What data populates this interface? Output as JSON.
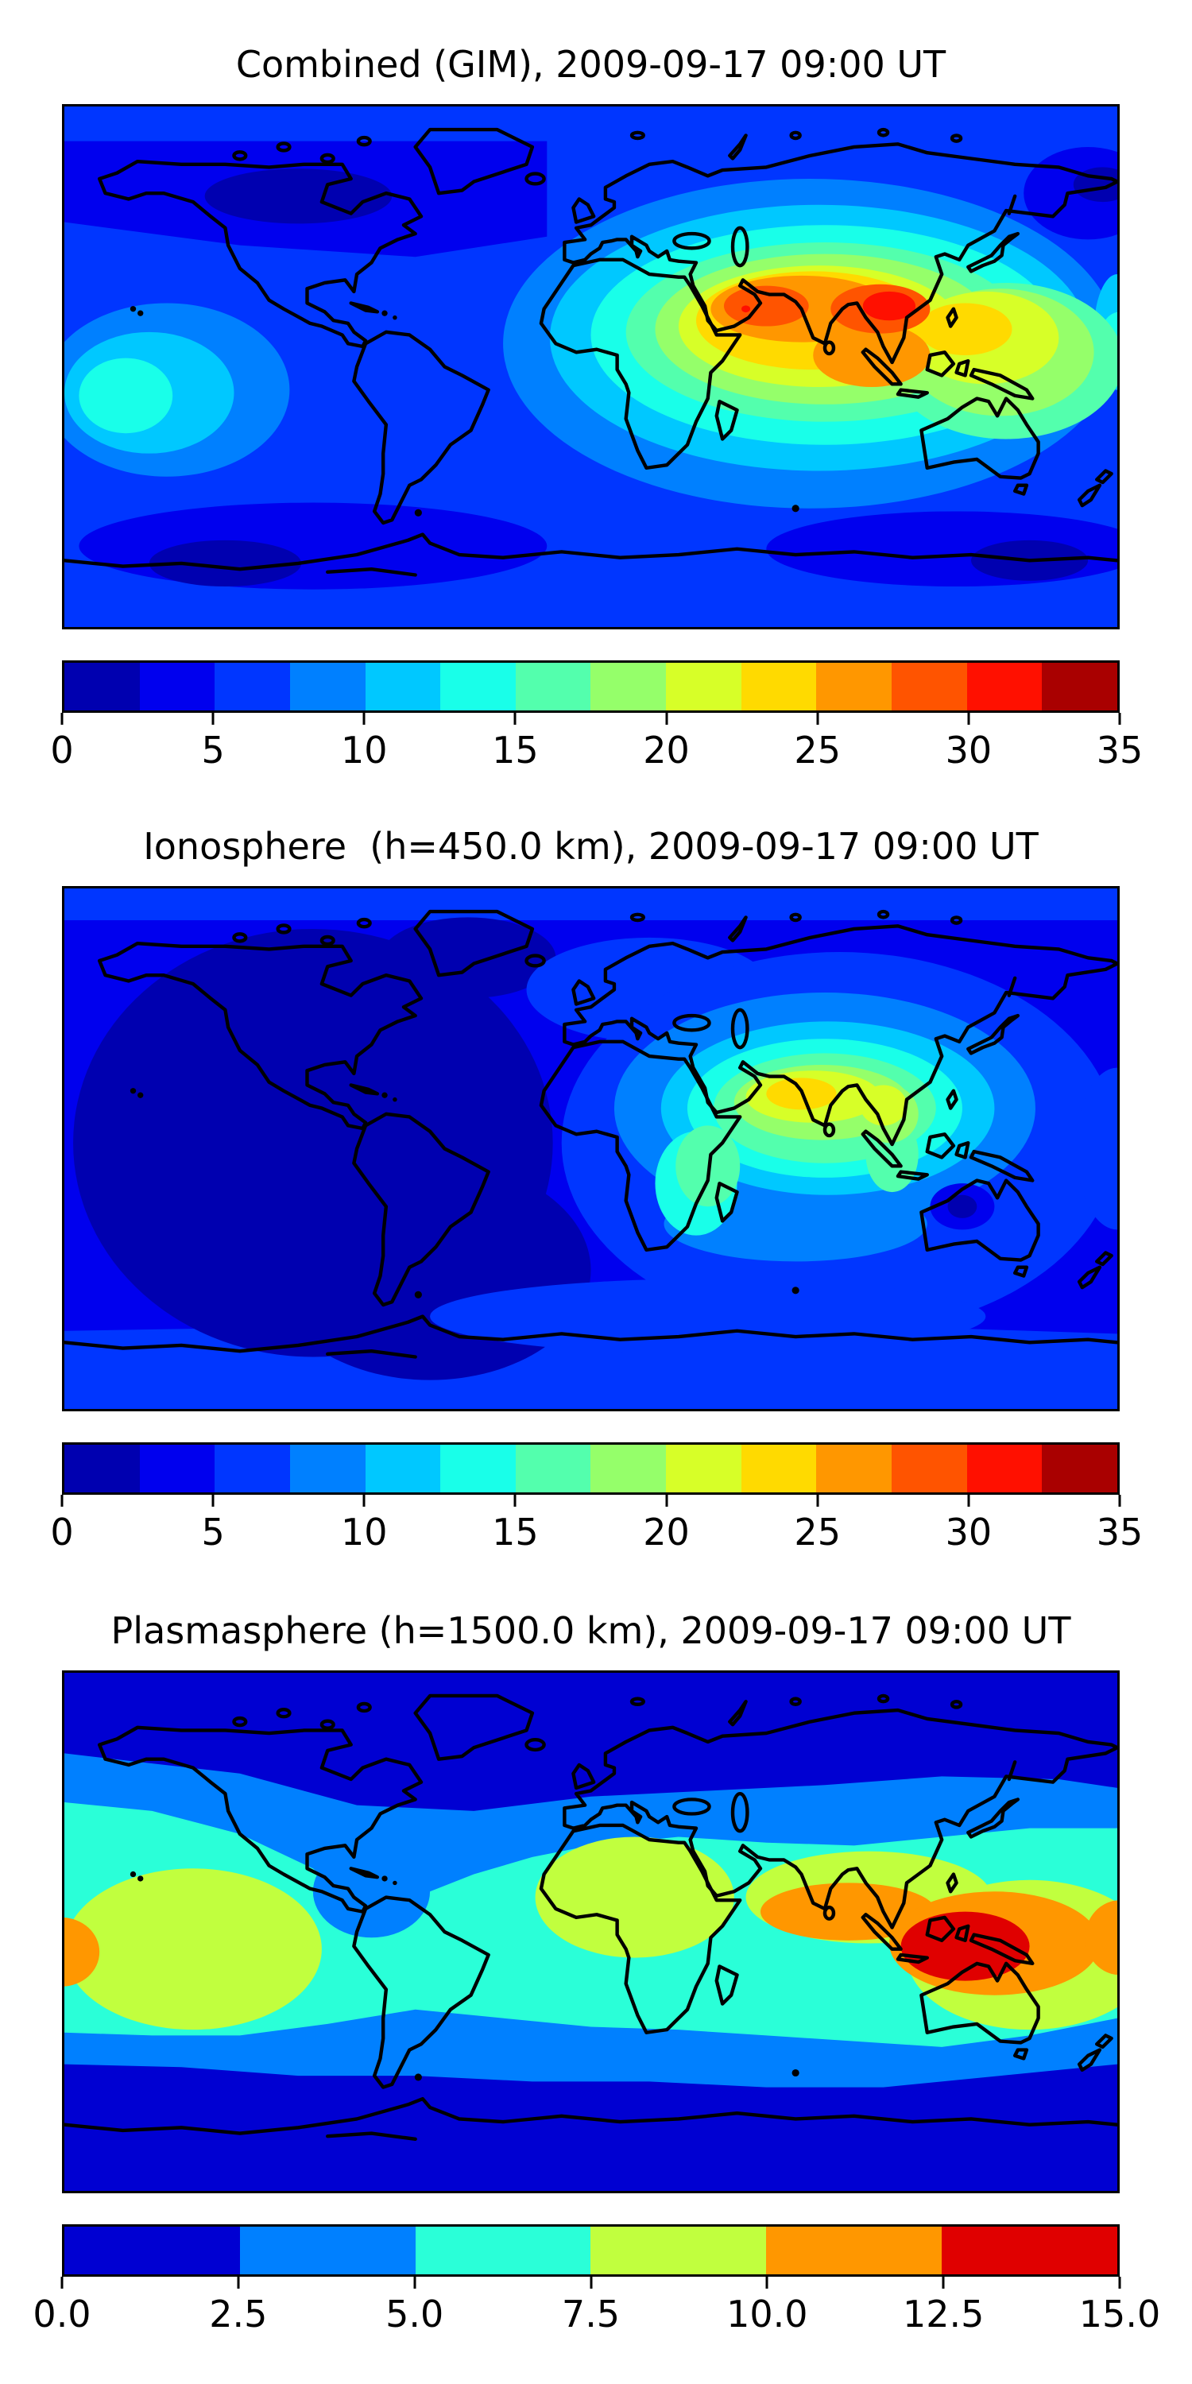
{
  "figure": {
    "background": "#ffffff",
    "panels": [
      {
        "id": "combined",
        "title": "Combined (GIM), 2009-09-17 09:00 UT",
        "colorbar": {
          "ticks": [
            "0",
            "5",
            "10",
            "15",
            "20",
            "25",
            "30",
            "35"
          ],
          "colors": [
            "#0000b0",
            "#0000ee",
            "#0036ff",
            "#0080ff",
            "#00c8ff",
            "#19ffe9",
            "#53ffad",
            "#95ff6a",
            "#d7ff28",
            "#ffda00",
            "#ff9700",
            "#ff5400",
            "#ff1000",
            "#a90000"
          ]
        }
      },
      {
        "id": "ionosphere",
        "title": "Ionosphere  (h=450.0 km), 2009-09-17 09:00 UT",
        "colorbar": {
          "ticks": [
            "0",
            "5",
            "10",
            "15",
            "20",
            "25",
            "30",
            "35"
          ],
          "colors": [
            "#0000b0",
            "#0000ee",
            "#0036ff",
            "#0080ff",
            "#00c8ff",
            "#19ffe9",
            "#53ffad",
            "#95ff6a",
            "#d7ff28",
            "#ffda00",
            "#ff9700",
            "#ff5400",
            "#ff1000",
            "#a90000"
          ]
        }
      },
      {
        "id": "plasmasphere",
        "title": "Plasmasphere (h=1500.0 km), 2009-09-17 09:00 UT",
        "colorbar": {
          "ticks": [
            "0.0",
            "2.5",
            "5.0",
            "7.5",
            "10.0",
            "12.5",
            "15.0"
          ],
          "colors": [
            "#0000d2",
            "#0080ff",
            "#2affd8",
            "#c1ff3e",
            "#ff9700",
            "#e00000"
          ]
        }
      }
    ]
  },
  "chart_data": [
    {
      "type": "heatmap",
      "subtype": "filled-contour-world-map",
      "title": "Combined (GIM), 2009-09-17 09:00 UT",
      "projection": "equirectangular, lon -180..180, lat -90..90",
      "value_range": [
        0,
        35
      ],
      "contour_interval": 2.5,
      "colormap": "jet (14 discrete bands)",
      "legend_position": "horizontal colorbar below map",
      "maxima": [
        {
          "lon": 102,
          "lat": 21,
          "approx_value": 33
        },
        {
          "lon": 57,
          "lat": 21,
          "approx_value": 31
        },
        {
          "lon": -155,
          "lat": -9,
          "approx_value": 14
        }
      ],
      "minima": [
        {
          "lon": -90,
          "lat": 60,
          "approx_value": 2
        },
        {
          "lon": -125,
          "lat": -68,
          "approx_value": 2
        }
      ],
      "regions": [
        {
          "t": "p",
          "c": "#0000ee",
          "pts": [
            [
              -180,
              78
            ],
            [
              -15,
              78
            ],
            [
              -15,
              45
            ],
            [
              -60,
              38
            ],
            [
              -120,
              42
            ],
            [
              -180,
              50
            ]
          ]
        },
        {
          "t": "e",
          "c": "#0000b0",
          "lon": -100,
          "lat": 59,
          "rx": 32,
          "ry": 9.5
        },
        {
          "t": "e",
          "c": "#0000ee",
          "lon": 170,
          "lat": 60,
          "rx": 22,
          "ry": 16
        },
        {
          "t": "e",
          "c": "#0000b0",
          "lon": 175,
          "lat": 63,
          "rx": 10,
          "ry": 6
        },
        {
          "t": "e",
          "c": "#0000ee",
          "lon": -95,
          "lat": -62,
          "rx": 80,
          "ry": 15
        },
        {
          "t": "e",
          "c": "#0000b0",
          "lon": -125,
          "lat": -68,
          "rx": 26,
          "ry": 8
        },
        {
          "t": "e",
          "c": "#0000ee",
          "lon": 125,
          "lat": -63,
          "rx": 65,
          "ry": 13
        },
        {
          "t": "e",
          "c": "#0000b0",
          "lon": 150,
          "lat": -67,
          "rx": 20,
          "ry": 7
        },
        {
          "t": "e",
          "c": "#0080ff",
          "lon": -145,
          "lat": -8,
          "rx": 42,
          "ry": 30
        },
        {
          "t": "e",
          "c": "#00c8ff",
          "lon": -151,
          "lat": -9,
          "rx": 29,
          "ry": 21
        },
        {
          "t": "e",
          "c": "#19ffe9",
          "lon": -159,
          "lat": -10,
          "rx": 16,
          "ry": 13
        },
        {
          "t": "e",
          "c": "#0080ff",
          "lon": 75,
          "lat": 8,
          "rx": 105,
          "ry": 57
        },
        {
          "t": "e",
          "c": "#00c8ff",
          "lon": 78,
          "lat": 10,
          "rx": 92,
          "ry": 46
        },
        {
          "t": "e",
          "c": "#00c8ff",
          "lon": 180,
          "lat": 12,
          "rx": 8,
          "ry": 20
        },
        {
          "t": "e",
          "c": "#19ffe9",
          "lon": 80,
          "lat": 11,
          "rx": 80,
          "ry": 38
        },
        {
          "t": "e",
          "c": "#19ffe9",
          "lon": 181,
          "lat": 10,
          "rx": 7,
          "ry": 9
        },
        {
          "t": "e",
          "c": "#53ffad",
          "lon": 80,
          "lat": 12,
          "rx": 68,
          "ry": 31
        },
        {
          "t": "e",
          "c": "#53ffad",
          "lon": 142,
          "lat": 2,
          "rx": 40,
          "ry": 27
        },
        {
          "t": "e",
          "c": "#95ff6a",
          "lon": 80,
          "lat": 13,
          "rx": 58,
          "ry": 26
        },
        {
          "t": "e",
          "c": "#95ff6a",
          "lon": 140,
          "lat": 5,
          "rx": 32,
          "ry": 22
        },
        {
          "t": "e",
          "c": "#d7ff28",
          "lon": 78,
          "lat": 14,
          "rx": 48,
          "ry": 21
        },
        {
          "t": "e",
          "c": "#d7ff28",
          "lon": 135,
          "lat": 10,
          "rx": 25,
          "ry": 16
        },
        {
          "t": "e",
          "c": "#ffda00",
          "lon": 76,
          "lat": 16,
          "rx": 40,
          "ry": 17
        },
        {
          "t": "e",
          "c": "#ffda00",
          "lon": 128,
          "lat": 13,
          "rx": 16,
          "ry": 9
        },
        {
          "t": "e",
          "c": "#ff9700",
          "lon": 72,
          "lat": 20,
          "rx": 31,
          "ry": 11.5
        },
        {
          "t": "e",
          "c": "#ff9700",
          "lon": 96,
          "lat": 4,
          "rx": 20,
          "ry": 11
        },
        {
          "t": "e",
          "c": "#ff5400",
          "lon": 60,
          "lat": 21,
          "rx": 14.5,
          "ry": 7
        },
        {
          "t": "e",
          "c": "#ff5400",
          "lon": 99,
          "lat": 20,
          "rx": 17,
          "ry": 8.5
        },
        {
          "t": "e",
          "c": "#ff1000",
          "lon": 102,
          "lat": 21,
          "rx": 9,
          "ry": 5
        },
        {
          "t": "e",
          "c": "#ff1000",
          "lon": 53,
          "lat": 20,
          "rx": 1.5,
          "ry": 1.2
        }
      ]
    },
    {
      "type": "heatmap",
      "subtype": "filled-contour-world-map",
      "title": "Ionosphere  (h=450.0 km), 2009-09-17 09:00 UT",
      "projection": "equirectangular, lon -180..180, lat -90..90",
      "value_range": [
        0,
        35
      ],
      "contour_interval": 2.5,
      "colormap": "jet (14 discrete bands)",
      "legend_position": "horizontal colorbar below map",
      "maxima": [
        {
          "lon": 75,
          "lat": 19,
          "approx_value": 24
        },
        {
          "lon": 100,
          "lat": 15,
          "approx_value": 22
        }
      ],
      "minima": [
        {
          "lon": -95,
          "lat": 0,
          "approx_value": 1
        }
      ],
      "regions": [
        {
          "t": "p",
          "c": "#0036ff",
          "pts": [
            [
              -180,
              90
            ],
            [
              180,
              90
            ],
            [
              180,
              79
            ],
            [
              -180,
              79
            ]
          ]
        },
        {
          "t": "p",
          "c": "#0036ff",
          "pts": [
            [
              -180,
              -63
            ],
            [
              -60,
              -61
            ],
            [
              40,
              -64
            ],
            [
              120,
              -62
            ],
            [
              180,
              -64
            ],
            [
              180,
              -90
            ],
            [
              -180,
              -90
            ]
          ]
        },
        {
          "t": "e",
          "c": "#0000b0",
          "lon": -95,
          "lat": 2,
          "rx": 82,
          "ry": 74
        },
        {
          "t": "e",
          "c": "#0000b0",
          "lon": -55,
          "lat": -42,
          "rx": 55,
          "ry": 38
        },
        {
          "t": "e",
          "c": "#0000b0",
          "lon": -42,
          "lat": 66,
          "rx": 30,
          "ry": 14
        },
        {
          "t": "e",
          "c": "#0036ff",
          "lon": 20,
          "lat": 55,
          "rx": 42,
          "ry": 18
        },
        {
          "t": "e",
          "c": "#0036ff",
          "lon": 85,
          "lat": 2,
          "rx": 95,
          "ry": 66
        },
        {
          "t": "e",
          "c": "#0036ff",
          "lon": 40,
          "lat": -58,
          "rx": 95,
          "ry": 13
        },
        {
          "t": "e",
          "c": "#0036ff",
          "lon": 180,
          "lat": 0,
          "rx": 14,
          "ry": 28
        },
        {
          "t": "e",
          "c": "#0080ff",
          "lon": 80,
          "lat": 14,
          "rx": 72,
          "ry": 40
        },
        {
          "t": "e",
          "c": "#0080ff",
          "lon": 70,
          "lat": -26,
          "rx": 45,
          "ry": 13
        },
        {
          "t": "e",
          "c": "#00c8ff",
          "lon": 81,
          "lat": 14,
          "rx": 57,
          "ry": 30
        },
        {
          "t": "e",
          "c": "#19ffe9",
          "lon": 80,
          "lat": 14,
          "rx": 47,
          "ry": 24
        },
        {
          "t": "e",
          "c": "#19ffe9",
          "lon": 36,
          "lat": -12,
          "rx": 14,
          "ry": 18
        },
        {
          "t": "e",
          "c": "#53ffad",
          "lon": 80,
          "lat": 14,
          "rx": 38,
          "ry": 19
        },
        {
          "t": "e",
          "c": "#53ffad",
          "lon": 40,
          "lat": -6,
          "rx": 11,
          "ry": 14
        },
        {
          "t": "e",
          "c": "#53ffad",
          "lon": 103,
          "lat": -2,
          "rx": 9,
          "ry": 13
        },
        {
          "t": "e",
          "c": "#95ff6a",
          "lon": 79,
          "lat": 16,
          "rx": 30,
          "ry": 13
        },
        {
          "t": "e",
          "c": "#95ff6a",
          "lon": 102,
          "lat": 12,
          "rx": 10,
          "ry": 10
        },
        {
          "t": "e",
          "c": "#d7ff28",
          "lon": 76,
          "lat": 18,
          "rx": 23,
          "ry": 9
        },
        {
          "t": "e",
          "c": "#d7ff28",
          "lon": 100,
          "lat": 15,
          "rx": 8,
          "ry": 7
        },
        {
          "t": "e",
          "c": "#ffda00",
          "lon": 72,
          "lat": 19,
          "rx": 12,
          "ry": 5.5
        },
        {
          "t": "e",
          "c": "#0000ee",
          "lon": 127,
          "lat": -20,
          "rx": 11,
          "ry": 8
        },
        {
          "t": "e",
          "c": "#0000b0",
          "lon": 127,
          "lat": -20,
          "rx": 5,
          "ry": 4
        }
      ]
    },
    {
      "type": "heatmap",
      "subtype": "filled-contour-world-map",
      "title": "Plasmasphere (h=1500.0 km), 2009-09-17 09:00 UT",
      "projection": "equirectangular, lon -180..180, lat -90..90",
      "value_range": [
        0,
        15
      ],
      "contour_interval": 2.5,
      "colormap": "jet (6 discrete bands)",
      "legend_position": "horizontal colorbar below map",
      "maxima": [
        {
          "lon": 128,
          "lat": -5,
          "approx_value": 14
        },
        {
          "lon": -178,
          "lat": -7,
          "approx_value": 11
        },
        {
          "lon": -135,
          "lat": -6,
          "approx_value": 9
        }
      ],
      "minima": [
        {
          "lon": 0,
          "lat": 75,
          "approx_value": 1
        },
        {
          "lon": 0,
          "lat": -75,
          "approx_value": 1
        }
      ],
      "regions": [
        {
          "t": "p",
          "c": "#0080ff",
          "pts": [
            [
              -180,
              62
            ],
            [
              -120,
              55
            ],
            [
              -80,
              44
            ],
            [
              -40,
              42
            ],
            [
              0,
              47
            ],
            [
              40,
              49
            ],
            [
              80,
              51
            ],
            [
              120,
              54
            ],
            [
              160,
              53
            ],
            [
              180,
              50
            ],
            [
              180,
              -46
            ],
            [
              140,
              -50
            ],
            [
              100,
              -54
            ],
            [
              60,
              -54
            ],
            [
              20,
              -52
            ],
            [
              -20,
              -52
            ],
            [
              -60,
              -50
            ],
            [
              -100,
              -50
            ],
            [
              -140,
              -47
            ],
            [
              -180,
              -46
            ]
          ]
        },
        {
          "t": "p",
          "c": "#2affd8",
          "pts": [
            [
              -180,
              45
            ],
            [
              -150,
              42
            ],
            [
              -120,
              34
            ],
            [
              -95,
              22
            ],
            [
              -80,
              8
            ],
            [
              -70,
              5
            ],
            [
              -60,
              12
            ],
            [
              -40,
              20
            ],
            [
              -20,
              26
            ],
            [
              0,
              30
            ],
            [
              30,
              33
            ],
            [
              60,
              31
            ],
            [
              90,
              30
            ],
            [
              120,
              33
            ],
            [
              150,
              36
            ],
            [
              180,
              36
            ],
            [
              180,
              -30
            ],
            [
              150,
              -36
            ],
            [
              120,
              -40
            ],
            [
              90,
              -38
            ],
            [
              60,
              -36
            ],
            [
              30,
              -34
            ],
            [
              0,
              -33
            ],
            [
              -30,
              -30
            ],
            [
              -60,
              -27
            ],
            [
              -90,
              -32
            ],
            [
              -120,
              -36
            ],
            [
              -150,
              -36
            ],
            [
              -180,
              -35
            ]
          ]
        },
        {
          "t": "e",
          "c": "#0080ff",
          "lon": -75,
          "lat": 14,
          "rx": 20,
          "ry": 16
        },
        {
          "t": "e",
          "c": "#c1ff3e",
          "lon": -136,
          "lat": -6,
          "rx": 44,
          "ry": 28
        },
        {
          "t": "e",
          "c": "#c1ff3e",
          "lon": 15,
          "lat": 12,
          "rx": 34,
          "ry": 21
        },
        {
          "t": "e",
          "c": "#c1ff3e",
          "lon": 95,
          "lat": 12,
          "rx": 42,
          "ry": 16
        },
        {
          "t": "e",
          "c": "#c1ff3e",
          "lon": 150,
          "lat": -8,
          "rx": 42,
          "ry": 26
        },
        {
          "t": "e",
          "c": "#ff9700",
          "lon": 88,
          "lat": 7,
          "rx": 30,
          "ry": 10
        },
        {
          "t": "e",
          "c": "#ff9700",
          "lon": 138,
          "lat": -4,
          "rx": 36,
          "ry": 18
        },
        {
          "t": "e",
          "c": "#ff9700",
          "lon": -181,
          "lat": -7,
          "rx": 13,
          "ry": 12
        },
        {
          "t": "e",
          "c": "#ff9700",
          "lon": 181,
          "lat": -2,
          "rx": 12,
          "ry": 13
        },
        {
          "t": "e",
          "c": "#e00000",
          "lon": 128,
          "lat": -5,
          "rx": 22,
          "ry": 12
        }
      ]
    }
  ]
}
